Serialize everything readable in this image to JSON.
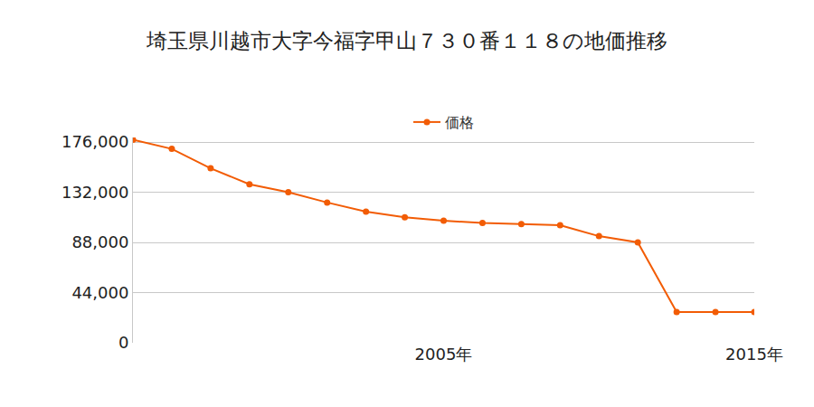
{
  "chart_data": {
    "type": "line",
    "title": "埼玉県川越市大字今福字甲山７３０番１１８の地価推移",
    "categories": [
      null,
      null,
      null,
      null,
      null,
      null,
      null,
      null,
      "2005年",
      null,
      null,
      null,
      null,
      null,
      null,
      null,
      "2015年"
    ],
    "series": [
      {
        "name": "価格",
        "color": "#f25c05",
        "marker": "circle",
        "values": [
          178000,
          170000,
          153000,
          139000,
          132000,
          123000,
          115000,
          110000,
          107000,
          105000,
          104000,
          103000,
          93500,
          88000,
          27000,
          27000,
          27000
        ]
      }
    ],
    "ylim": [
      0,
      180000
    ],
    "yticks": [
      0,
      {
        "value": 44000,
        "label": "44,000"
      },
      {
        "value": 88000,
        "label": "88,000"
      },
      {
        "value": 132000,
        "label": "132,000"
      },
      {
        "value": 176000,
        "label": "176,000"
      }
    ],
    "grid": true,
    "legend": "top"
  }
}
